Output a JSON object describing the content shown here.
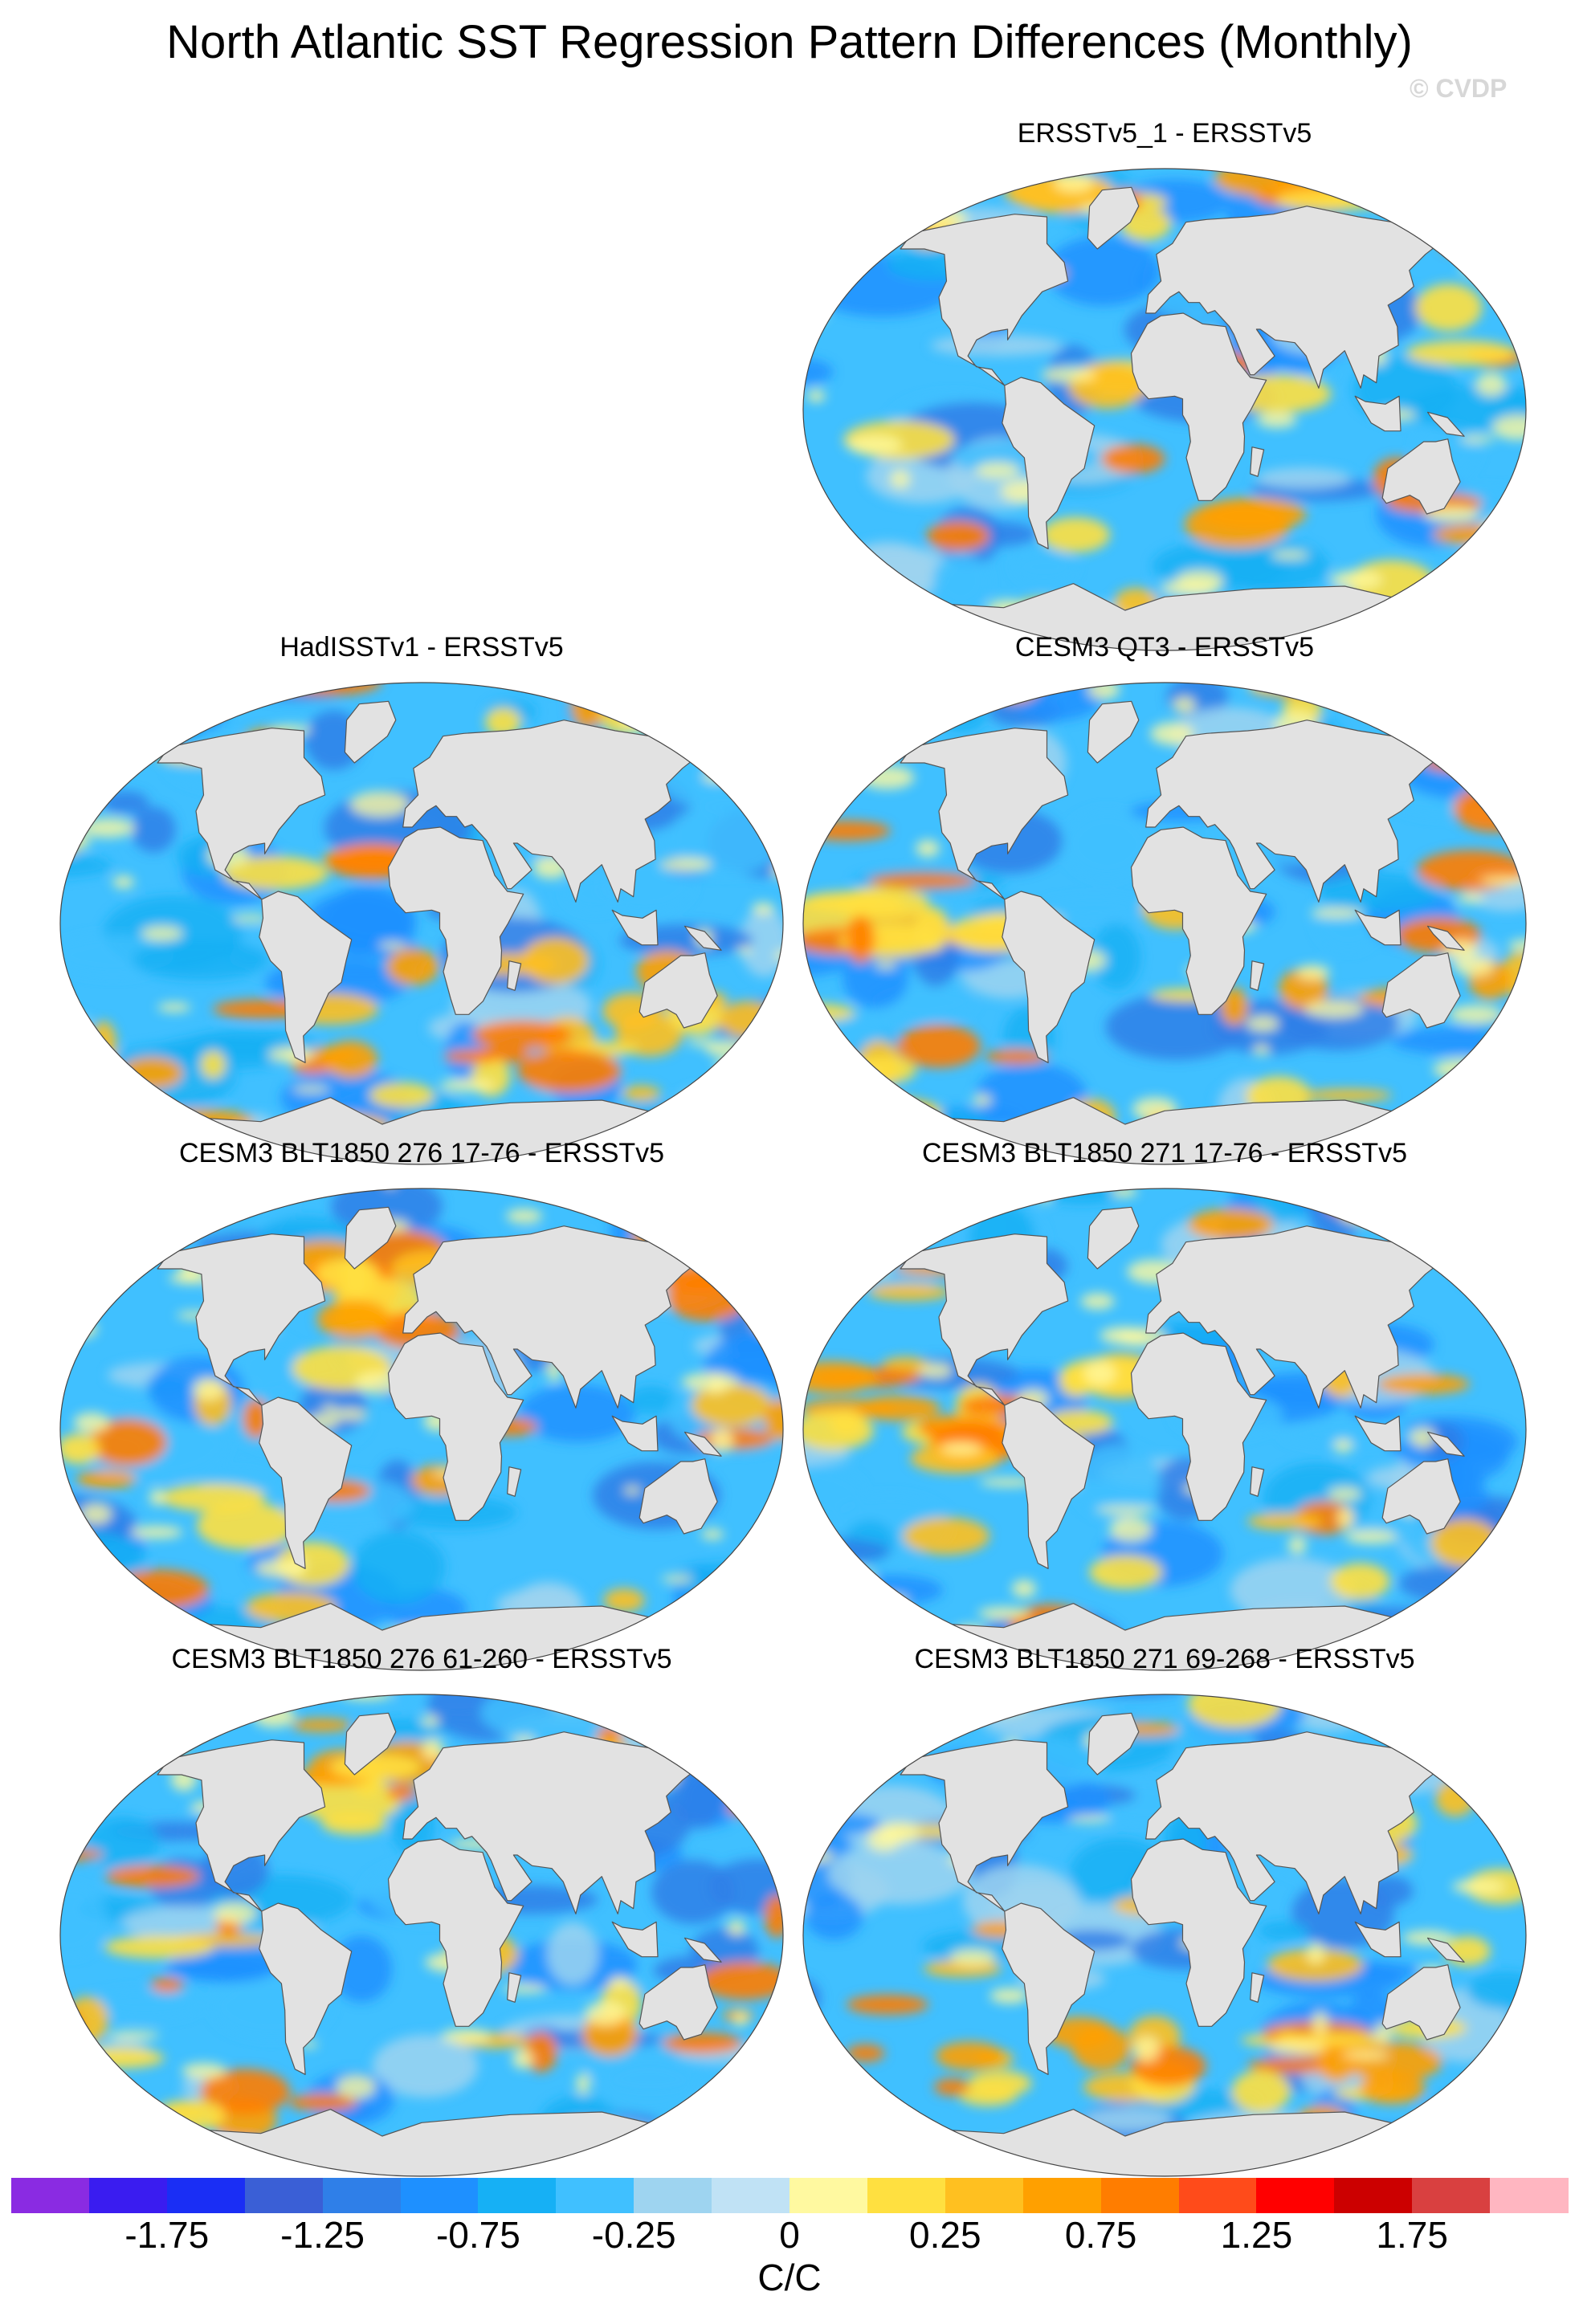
{
  "figure": {
    "title": "North Atlantic SST Regression Pattern Differences (Monthly)",
    "watermark": "© CVDP"
  },
  "panels": [
    {
      "id": "p1",
      "title": "ERSSTv5_1 - ERSSTv5"
    },
    {
      "id": "p2",
      "title": "HadISSTv1 - ERSSTv5"
    },
    {
      "id": "p3",
      "title": "CESM3 QT3 - ERSSTv5"
    },
    {
      "id": "p4",
      "title": "CESM3 BLT1850 276 17-76 - ERSSTv5"
    },
    {
      "id": "p5",
      "title": "CESM3 BLT1850 271 17-76 - ERSSTv5"
    },
    {
      "id": "p6",
      "title": "CESM3 BLT1850 276 61-260 - ERSSTv5"
    },
    {
      "id": "p7",
      "title": "CESM3 BLT1850 271 69-268 - ERSSTv5"
    }
  ],
  "colorbar": {
    "units": "C/C",
    "colors": [
      "#8a2be2",
      "#3a1cf0",
      "#1a2ef5",
      "#3a5fd6",
      "#2f7fe8",
      "#1e90ff",
      "#16b0f5",
      "#40c0ff",
      "#9ed4f0",
      "#c0e2f5",
      "#fff9a0",
      "#ffe040",
      "#ffc020",
      "#ffa000",
      "#ff7d00",
      "#ff4b1a",
      "#ff0000",
      "#cc0000",
      "#d94040",
      "#ffb6c1"
    ],
    "tick_labels": [
      "-1.75",
      "-1.25",
      "-0.75",
      "-0.25",
      "0",
      "0.25",
      "0.75",
      "1.25",
      "1.75"
    ]
  }
}
